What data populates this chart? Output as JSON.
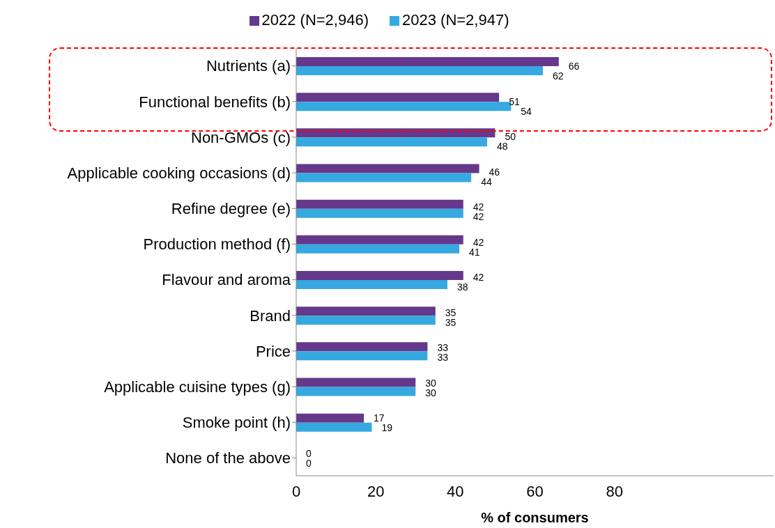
{
  "chart_data": {
    "type": "bar",
    "orientation": "horizontal",
    "xlabel": "% of consumers",
    "categories": [
      "Nutrients (a)",
      "Functional benefits (b)",
      "Non-GMOs (c)",
      "Applicable cooking occasions (d)",
      "Refine degree (e)",
      "Production method (f)",
      "Flavour and aroma",
      "Brand",
      "Price",
      "Applicable cuisine types (g)",
      "Smoke point (h)",
      "None of the above"
    ],
    "series": [
      {
        "name": "2022 (N=2,946)",
        "color": "#65388c",
        "values": [
          66,
          51,
          50,
          46,
          42,
          42,
          42,
          35,
          33,
          30,
          17,
          0
        ]
      },
      {
        "name": "2023 (N=2,947)",
        "color": "#35a9e0",
        "values": [
          62,
          54,
          48,
          44,
          42,
          41,
          38,
          35,
          33,
          30,
          19,
          0
        ]
      }
    ],
    "xlim": [
      0,
      120
    ],
    "xticks": [
      0,
      20,
      40,
      60,
      80
    ],
    "data_labels": true,
    "legend": "top",
    "grid": false
  }
}
